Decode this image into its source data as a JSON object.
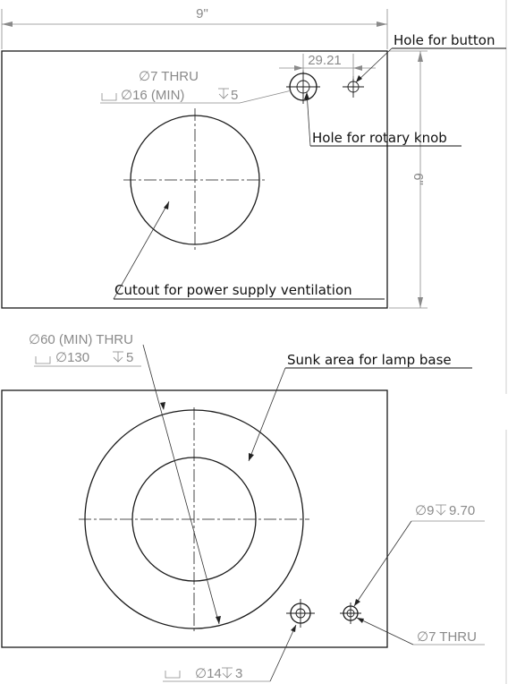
{
  "drawing": {
    "top_view": {
      "width_dimension": "9\"",
      "height_dimension": "6\"",
      "hole_spacing": "29.21",
      "knob_callout_line1": "∅7 THRU",
      "knob_callout_line2": "∅16 (MIN)",
      "knob_callout_depth": "5",
      "label_button_hole": "Hole for button",
      "label_knob_hole": "Hole for rotary knob",
      "label_cutout": "Cutout for power supply ventilation"
    },
    "bottom_view": {
      "center_callout_line1": "∅60 (MIN) THRU",
      "center_callout_line2": "∅130",
      "center_callout_depth": "5",
      "label_sunk_area": "Sunk area for lamp base",
      "right_hole_callout": "∅9",
      "right_hole_depth": "9.70",
      "right_hole_thru": "∅7 THRU",
      "left_hole_callout": "∅14",
      "left_hole_depth": "3"
    },
    "colors": {
      "outline": "#1a1a1a",
      "dimension": "#8a8a8a",
      "background": "#ffffff"
    }
  }
}
